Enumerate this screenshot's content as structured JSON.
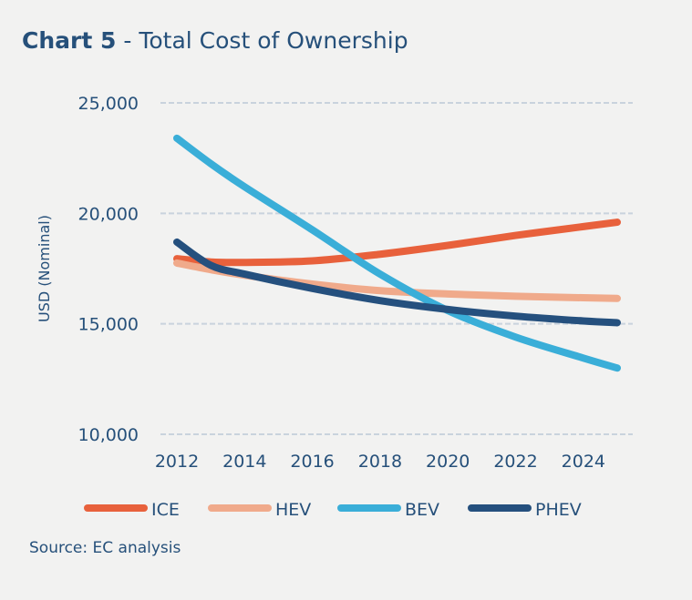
{
  "chart_data": {
    "type": "line",
    "title_bold": "Chart 5",
    "title_sep": "-",
    "title": "Total Cost of Ownership",
    "xlabel": "",
    "ylabel": "USD (Nominal)",
    "xlim": [
      2012,
      2025
    ],
    "ylim": [
      10000,
      25000
    ],
    "x_ticks": [
      2012,
      2014,
      2016,
      2018,
      2020,
      2022,
      2024
    ],
    "x_tick_labels": [
      "2012",
      "2014",
      "2016",
      "2018",
      "2020",
      "2022",
      "2024"
    ],
    "y_ticks": [
      10000,
      15000,
      20000,
      25000
    ],
    "y_tick_labels": [
      "10,000",
      "15,000",
      "20,000",
      "25,000"
    ],
    "grid": "horizontal dashed",
    "legend_position": "bottom",
    "x": [
      2012,
      2013,
      2014,
      2016,
      2018,
      2020,
      2022,
      2024,
      2025
    ],
    "series": [
      {
        "name": "ICE",
        "color": "#e8613c",
        "values": [
          17950,
          17800,
          17780,
          17850,
          18150,
          18550,
          19000,
          19400,
          19600
        ]
      },
      {
        "name": "HEV",
        "color": "#f0aa8b",
        "values": [
          17750,
          17450,
          17200,
          16800,
          16500,
          16350,
          16250,
          16180,
          16150
        ]
      },
      {
        "name": "BEV",
        "color": "#3aaed8",
        "values": [
          23400,
          22250,
          21200,
          19250,
          17250,
          15600,
          14400,
          13450,
          13000
        ]
      },
      {
        "name": "PHEV",
        "color": "#25507e",
        "values": [
          18700,
          17650,
          17250,
          16600,
          16050,
          15650,
          15350,
          15130,
          15050
        ]
      }
    ],
    "source": "Source: EC analysis"
  }
}
